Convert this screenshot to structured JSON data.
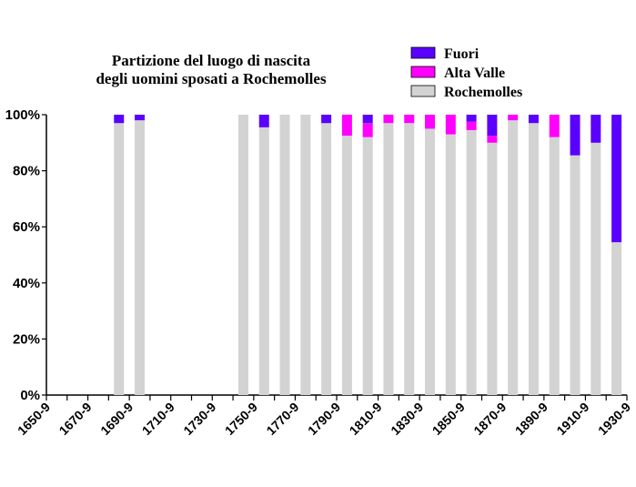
{
  "chart_data": {
    "type": "bar",
    "stacked": true,
    "percent": true,
    "title": [
      "Partizione del luogo di nascita",
      "degli uomini sposati a Rochemolles"
    ],
    "xlabel": "",
    "ylabel": "",
    "ylim": [
      0,
      100
    ],
    "yticks": [
      "0%",
      "20%",
      "40%",
      "60%",
      "80%",
      "100%"
    ],
    "xticks": [
      "1650-9",
      "1670-9",
      "1690-9",
      "1710-9",
      "1730-9",
      "1750-9",
      "1770-9",
      "1790-9",
      "1810-9",
      "1830-9",
      "1850-9",
      "1870-9",
      "1890-9",
      "1910-9",
      "1930-9"
    ],
    "categories": [
      "1650-9",
      "1660-9",
      "1670-9",
      "1680-9",
      "1690-9",
      "1700-9",
      "1710-9",
      "1720-9",
      "1730-9",
      "1740-9",
      "1750-9",
      "1760-9",
      "1770-9",
      "1780-9",
      "1790-9",
      "1800-9",
      "1810-9",
      "1820-9",
      "1830-9",
      "1840-9",
      "1850-9",
      "1860-9",
      "1870-9",
      "1880-9",
      "1890-9",
      "1900-9",
      "1910-9",
      "1920-9",
      "1930-9"
    ],
    "legend_position": "top-right",
    "series": [
      {
        "name": "Rochemolles",
        "color": "#d3d3d3",
        "values": [
          0,
          0,
          0,
          97,
          98,
          0,
          0,
          0,
          0,
          100,
          95.5,
          100,
          100,
          97,
          92.5,
          92,
          97,
          97,
          95,
          93,
          94.5,
          90,
          98,
          97,
          92,
          85.5,
          90,
          54.5,
          0
        ]
      },
      {
        "name": "Alta Valle",
        "color": "#ff00ff",
        "values": [
          0,
          0,
          0,
          0,
          0,
          0,
          0,
          0,
          0,
          0,
          0,
          0,
          0,
          0,
          7.5,
          5,
          3,
          3,
          5,
          7,
          3,
          2.5,
          2,
          0,
          8,
          0,
          0,
          0,
          0
        ]
      },
      {
        "name": "Fuori",
        "color": "#5a00ff",
        "values": [
          0,
          0,
          0,
          3,
          2,
          0,
          0,
          0,
          0,
          0,
          4.5,
          0,
          0,
          3,
          0,
          3,
          0,
          0,
          0,
          0,
          2.5,
          7.5,
          0,
          3,
          0,
          14.5,
          10,
          45.5,
          0
        ]
      }
    ],
    "legend_order": [
      "Fuori",
      "Alta Valle",
      "Rochemolles"
    ],
    "grid": false
  }
}
